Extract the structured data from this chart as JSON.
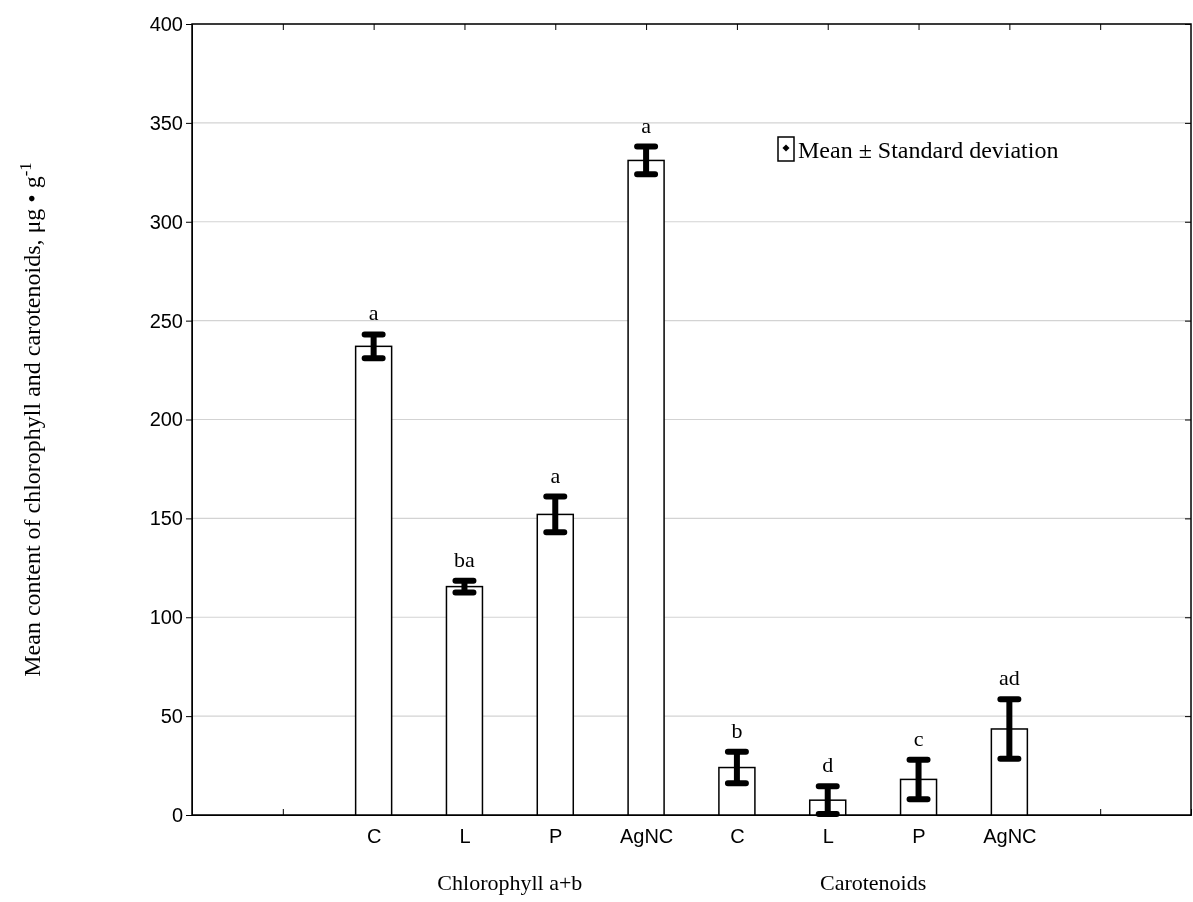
{
  "chart_data": {
    "type": "bar",
    "ylabel": "Mean content of chlorophyll and carotenoids, μg • g$^{-1}$",
    "categories": [
      null,
      "C",
      "L",
      "P",
      "AgNC",
      "C",
      "L",
      "P",
      "AgNC",
      null
    ],
    "series": [
      {
        "name": "Mean ± Standard deviation",
        "color": "#ffffff",
        "values": [
          null,
          237,
          115.5,
          152,
          331,
          24,
          7.5,
          18,
          43.5,
          null
        ],
        "errors": [
          null,
          6,
          3,
          9,
          7,
          8,
          7,
          10,
          15,
          null
        ],
        "value_labels": [
          null,
          "a",
          "ba",
          "a",
          "a",
          "b",
          "d",
          "c",
          "ad",
          null
        ]
      }
    ],
    "annotations": [
      "Chlorophyll a+b",
      "Carotenoids"
    ],
    "ylim": [
      0,
      400
    ],
    "yticks": [
      0,
      50,
      100,
      150,
      200,
      250,
      300,
      350,
      400
    ],
    "grid": "y",
    "legend": "top right"
  }
}
